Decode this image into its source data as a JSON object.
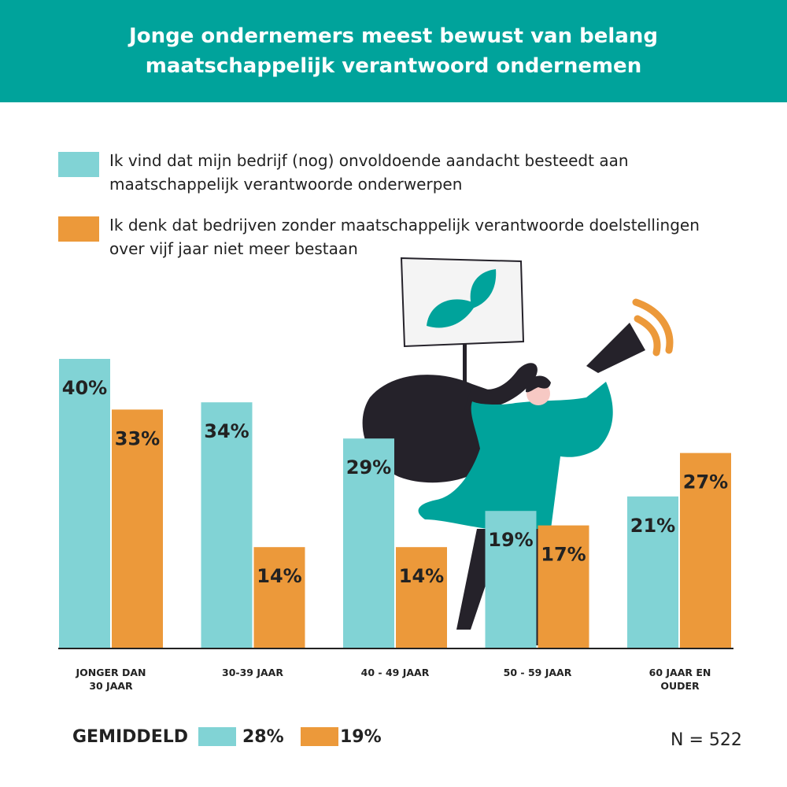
{
  "header": {
    "title": "Jonge ondernemers meest bewust van belang maatschappelijk verantwoord ondernemen"
  },
  "colors": {
    "header_bg": "#00A39B",
    "teal": "#81D3D5",
    "orange": "#EC993A",
    "dark": "#25222A"
  },
  "legend": [
    {
      "text": "Ik vind dat mijn bedrijf (nog) onvoldoende aandacht besteedt aan maatschappelijk verantwoorde onderwerpen",
      "color": "#81D3D5"
    },
    {
      "text": "Ik denk dat bedrijven zonder maatschappelijk verantwoorde doelstellingen over vijf jaar niet meer bestaan",
      "color": "#EC993A"
    }
  ],
  "chart_data": {
    "type": "bar",
    "categories": [
      "JONGER DAN 30 JAAR",
      "30-39 JAAR",
      "40 - 49 JAAR",
      "50 - 59 JAAR",
      "60 JAAR EN OUDER"
    ],
    "series": [
      {
        "values": [
          40,
          34,
          29,
          19,
          21
        ],
        "labels": [
          "40%",
          "34%",
          "29%",
          "19%",
          "21%"
        ],
        "color": "#81D3D5"
      },
      {
        "values": [
          33,
          14,
          14,
          17,
          27
        ],
        "labels": [
          "33%",
          "14%",
          "14%",
          "17%",
          "27%"
        ],
        "color": "#EC993A"
      }
    ],
    "ylim": [
      0,
      40
    ],
    "grid": false
  },
  "footer": {
    "average_label": "GEMIDDELD",
    "average_values": [
      "28%",
      "19%"
    ],
    "n_label": "N = 522"
  }
}
